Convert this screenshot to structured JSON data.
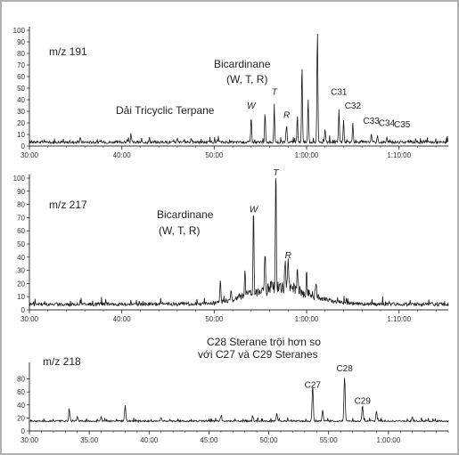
{
  "chart_data": [
    {
      "type": "line",
      "ion_label": "m/z 191",
      "annotations": [
        {
          "text": "Dải Tricyclic Terpane",
          "at_time": "0:45:00"
        },
        {
          "text": "Bicardinane",
          "at_time": "0:57:30"
        },
        {
          "text": "(W, T, R)",
          "at_time": "0:57:30"
        }
      ],
      "peak_labels": [
        {
          "text": "W",
          "time": "0:54:00",
          "value": 30
        },
        {
          "text": "T",
          "time": "0:56:30",
          "value": 42
        },
        {
          "text": "R",
          "time": "0:57:50",
          "value": 22
        },
        {
          "text": "C31",
          "time": "1:03:30",
          "value": 42
        },
        {
          "text": "C32",
          "time": "1:05:00",
          "value": 30
        },
        {
          "text": "C33",
          "time": "1:07:00",
          "value": 17
        },
        {
          "text": "C34",
          "time": "1:08:40",
          "value": 15
        },
        {
          "text": "C35",
          "time": "1:10:20",
          "value": 14
        }
      ],
      "x_ticks": [
        "30:00",
        "40:00",
        "50:00",
        "1:00:00",
        "1:10:00"
      ],
      "y_ticks": [
        0,
        10,
        20,
        30,
        40,
        50,
        60,
        70,
        80,
        90,
        100
      ],
      "xlim": [
        "0:30:00",
        "1:15:20"
      ],
      "ylim": [
        0,
        100
      ],
      "peaks": [
        {
          "time": "0:35:30",
          "value": 6
        },
        {
          "time": "0:41:00",
          "value": 8
        },
        {
          "time": "0:43:00",
          "value": 6
        },
        {
          "time": "0:46:00",
          "value": 5
        },
        {
          "time": "0:47:30",
          "value": 6
        },
        {
          "time": "0:54:00",
          "value": 25
        },
        {
          "time": "0:55:30",
          "value": 27
        },
        {
          "time": "0:56:30",
          "value": 30
        },
        {
          "time": "0:57:50",
          "value": 18
        },
        {
          "time": "0:59:00",
          "value": 26
        },
        {
          "time": "0:59:30",
          "value": 70
        },
        {
          "time": "1:00:10",
          "value": 40
        },
        {
          "time": "1:01:10",
          "value": 100
        },
        {
          "time": "1:02:00",
          "value": 13
        },
        {
          "time": "1:03:30",
          "value": 30
        },
        {
          "time": "1:04:00",
          "value": 21
        },
        {
          "time": "1:05:00",
          "value": 18
        },
        {
          "time": "1:07:00",
          "value": 9
        },
        {
          "time": "1:07:40",
          "value": 8
        },
        {
          "time": "1:08:40",
          "value": 6
        },
        {
          "time": "1:10:20",
          "value": 4
        }
      ]
    },
    {
      "type": "line",
      "ion_label": "m/z 217",
      "annotations": [
        {
          "text": "Bicardinane",
          "at_time": "0:52:00"
        },
        {
          "text": "(W, T, R)",
          "at_time": "0:52:00"
        }
      ],
      "peak_labels": [
        {
          "text": "W",
          "time": "0:54:15",
          "value": 72
        },
        {
          "text": "T",
          "time": "0:56:40",
          "value": 100
        },
        {
          "text": "R",
          "time": "0:58:00",
          "value": 37
        }
      ],
      "x_ticks": [
        "30:00",
        "40:00",
        "50:00",
        "1:00:00",
        "1:10:00"
      ],
      "y_ticks": [
        0,
        10,
        20,
        30,
        40,
        50,
        60,
        70,
        80,
        90,
        100
      ],
      "xlim": [
        "0:30:00",
        "1:15:20"
      ],
      "ylim": [
        0,
        100
      ],
      "peaks": [
        {
          "time": "0:50:40",
          "value": 20
        },
        {
          "time": "0:51:50",
          "value": 12
        },
        {
          "time": "0:53:20",
          "value": 22
        },
        {
          "time": "0:54:15",
          "value": 67
        },
        {
          "time": "0:55:30",
          "value": 28
        },
        {
          "time": "0:56:40",
          "value": 98
        },
        {
          "time": "0:57:40",
          "value": 24
        },
        {
          "time": "0:58:00",
          "value": 30
        },
        {
          "time": "0:59:00",
          "value": 24
        },
        {
          "time": "1:00:00",
          "value": 18
        },
        {
          "time": "1:01:00",
          "value": 14
        }
      ]
    },
    {
      "type": "line",
      "ion_label": "m/z 218",
      "annotations": [
        {
          "text": "C28 Sterane trội hơn so",
          "at_time": "0:50:00"
        },
        {
          "text": "với C27 và C29 Steranes",
          "at_time": "0:50:00"
        }
      ],
      "peak_labels": [
        {
          "text": "C27",
          "time": "0:53:40",
          "value": 62
        },
        {
          "text": "C28",
          "time": "0:56:20",
          "value": 88
        },
        {
          "text": "C29",
          "time": "0:57:50",
          "value": 38
        }
      ],
      "x_ticks": [
        "30:00",
        "35:00",
        "40:00",
        "45:00",
        "50:00",
        "55:00",
        "1:00:00"
      ],
      "y_ticks": [
        0,
        20,
        40,
        60,
        80
      ],
      "xlim": [
        "0:30:00",
        "1:05:00"
      ],
      "ylim": [
        0,
        100
      ],
      "peaks": [
        {
          "time": "0:33:20",
          "value": 30
        },
        {
          "time": "0:34:00",
          "value": 22
        },
        {
          "time": "0:36:00",
          "value": 20
        },
        {
          "time": "0:38:00",
          "value": 38
        },
        {
          "time": "0:41:00",
          "value": 20
        },
        {
          "time": "0:46:00",
          "value": 22
        },
        {
          "time": "0:48:40",
          "value": 20
        },
        {
          "time": "0:50:40",
          "value": 25
        },
        {
          "time": "0:53:40",
          "value": 68
        },
        {
          "time": "0:54:30",
          "value": 32
        },
        {
          "time": "0:56:20",
          "value": 82
        },
        {
          "time": "0:57:50",
          "value": 38
        },
        {
          "time": "0:59:00",
          "value": 30
        },
        {
          "time": "1:02:00",
          "value": 20
        }
      ]
    }
  ]
}
